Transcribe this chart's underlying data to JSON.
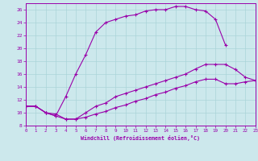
{
  "xlabel": "Windchill (Refroidissement éolien,°C)",
  "bg_color": "#cce8ec",
  "line_color": "#9900aa",
  "xlim": [
    0,
    23
  ],
  "ylim": [
    8,
    27
  ],
  "xticks": [
    0,
    1,
    2,
    3,
    4,
    5,
    6,
    7,
    8,
    9,
    10,
    11,
    12,
    13,
    14,
    15,
    16,
    17,
    18,
    19,
    20,
    21,
    22,
    23
  ],
  "yticks": [
    8,
    10,
    12,
    14,
    16,
    18,
    20,
    22,
    24,
    26
  ],
  "curve1_x": [
    0,
    1,
    2,
    3,
    4,
    5,
    6,
    7,
    8,
    9,
    10,
    11,
    12,
    13,
    14,
    15,
    16,
    17,
    18,
    19,
    20
  ],
  "curve1_y": [
    11,
    11,
    10,
    9.5,
    12.5,
    16,
    19,
    22.5,
    24,
    24.5,
    25,
    25.2,
    25.8,
    26,
    26,
    26.5,
    26.5,
    26,
    25.8,
    24.5,
    20.5
  ],
  "curve2_x": [
    0,
    1,
    2,
    3,
    4,
    5,
    6,
    7,
    8,
    9,
    10,
    11,
    12,
    13,
    14,
    15,
    16,
    17,
    18,
    19,
    20,
    21,
    22,
    23
  ],
  "curve2_y": [
    11,
    11,
    10,
    9.5,
    9,
    9,
    10,
    11,
    11.5,
    12.5,
    13,
    13.5,
    14,
    14.5,
    15,
    15.5,
    16,
    16.8,
    17.5,
    17.5,
    17.5,
    16.7,
    15.5,
    15.0
  ],
  "curve3_x": [
    0,
    1,
    2,
    3,
    4,
    5,
    6,
    7,
    8,
    9,
    10,
    11,
    12,
    13,
    14,
    15,
    16,
    17,
    18,
    19,
    20,
    21,
    22,
    23
  ],
  "curve3_y": [
    11,
    11,
    10,
    9.8,
    9,
    9,
    9.3,
    9.8,
    10.2,
    10.8,
    11.2,
    11.8,
    12.2,
    12.8,
    13.2,
    13.8,
    14.2,
    14.8,
    15.2,
    15.2,
    14.5,
    14.5,
    14.8,
    15.0
  ],
  "grid_color": "#aad4d8",
  "spine_color": "#9900aa"
}
